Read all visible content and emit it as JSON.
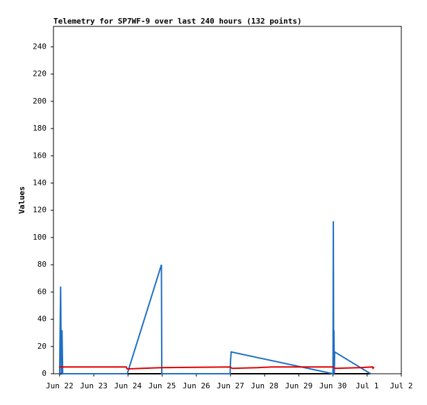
{
  "chart_data": {
    "type": "line",
    "title": "Telemetry for SP7WF-9 over last 240 hours (132 points)",
    "y_label": "Values",
    "xlim": [
      -0.18,
      10
    ],
    "ylim": [
      0,
      255
    ],
    "xticks": [
      {
        "value": 0,
        "label": "Jun 22"
      },
      {
        "value": 1,
        "label": "Jun 23"
      },
      {
        "value": 2,
        "label": "Jun 24"
      },
      {
        "value": 3,
        "label": "Jun 25"
      },
      {
        "value": 4,
        "label": "Jun 26"
      },
      {
        "value": 5,
        "label": "Jun 27"
      },
      {
        "value": 6,
        "label": "Jun 28"
      },
      {
        "value": 7,
        "label": "Jun 29"
      },
      {
        "value": 8,
        "label": "Jun 30"
      },
      {
        "value": 9,
        "label": "Jul 1"
      },
      {
        "value": 10,
        "label": "Jul 2"
      }
    ],
    "yticks": [
      0,
      20,
      40,
      60,
      80,
      100,
      120,
      140,
      160,
      180,
      200,
      220,
      240
    ],
    "series": [
      {
        "color": "#000000",
        "x": [
          0,
          9.1
        ],
        "values": [
          0,
          0
        ]
      },
      {
        "color": "#1f6ec4",
        "x": [
          0.0,
          0.03,
          0.05,
          0.07,
          0.09,
          1.98,
          2.98,
          2.99,
          4.99,
          5.0,
          5.02,
          8.0,
          8.01,
          8.02,
          8.03,
          8.04,
          8.05,
          9.1
        ],
        "values": [
          0,
          64,
          0,
          32,
          0,
          0,
          80,
          0,
          0,
          8,
          16,
          0,
          112,
          0,
          32,
          0,
          16,
          0
        ]
      },
      {
        "color": "#e00000",
        "x": [
          -0.02,
          1.95,
          1.98,
          2.4,
          2.98,
          4.99,
          5.05,
          5.8,
          6.2,
          8.0,
          8.05,
          8.8,
          9.15,
          9.17,
          9.2
        ],
        "values": [
          5,
          5,
          3.5,
          4,
          4.5,
          5,
          4,
          4.5,
          5,
          5,
          4,
          4.5,
          5,
          4,
          5
        ]
      }
    ]
  }
}
